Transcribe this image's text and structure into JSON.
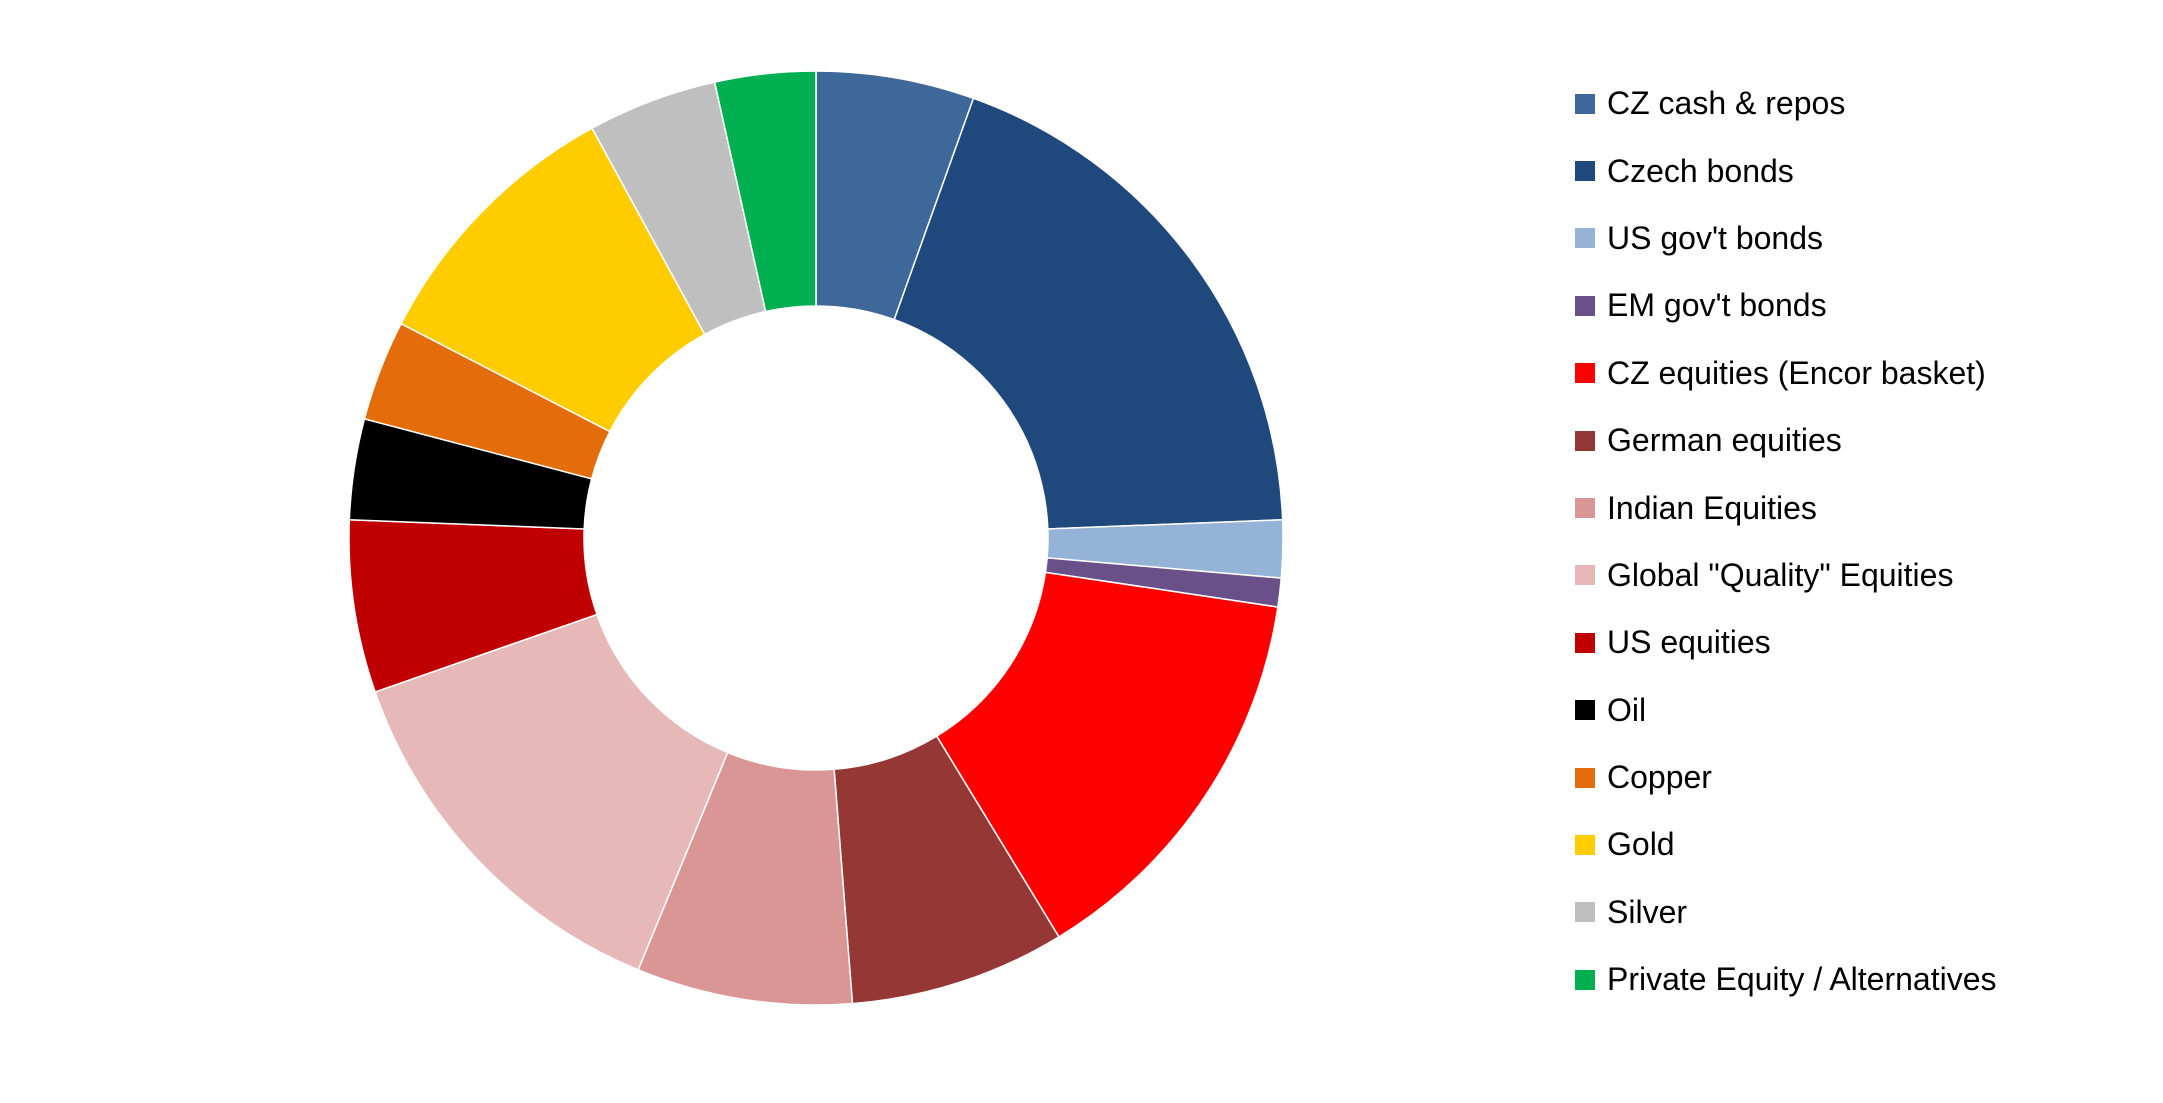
{
  "chart_data": {
    "type": "pie",
    "variant": "donut",
    "title": "",
    "legend_position": "right",
    "slices": [
      {
        "label": "CZ cash & repos",
        "value": 5.5,
        "color": "#3E6899"
      },
      {
        "label": "Czech bonds",
        "value": 19.0,
        "color": "#1F497D"
      },
      {
        "label": "US gov't bonds",
        "value": 2.0,
        "color": "#95B3D7"
      },
      {
        "label": "EM gov't bonds",
        "value": 1.0,
        "color": "#6A5089"
      },
      {
        "label": "CZ equities (Encor basket)",
        "value": 14.0,
        "color": "#FF0000"
      },
      {
        "label": "German equities",
        "value": 7.5,
        "color": "#953735"
      },
      {
        "label": "Indian Equities",
        "value": 7.5,
        "color": "#D99694"
      },
      {
        "label": "Global \"Quality\" Equities",
        "value": 13.5,
        "color": "#E6B9B8"
      },
      {
        "label": "US equities",
        "value": 6.0,
        "color": "#C00000"
      },
      {
        "label": "Oil",
        "value": 3.5,
        "color": "#000000"
      },
      {
        "label": "Copper",
        "value": 3.5,
        "color": "#E46C0A"
      },
      {
        "label": "Gold",
        "value": 9.5,
        "color": "#FFCC00"
      },
      {
        "label": "Silver",
        "value": 4.5,
        "color": "#BFBFBF"
      },
      {
        "label": "Private Equity / Alternatives",
        "value": 3.5,
        "color": "#00B050"
      }
    ]
  }
}
